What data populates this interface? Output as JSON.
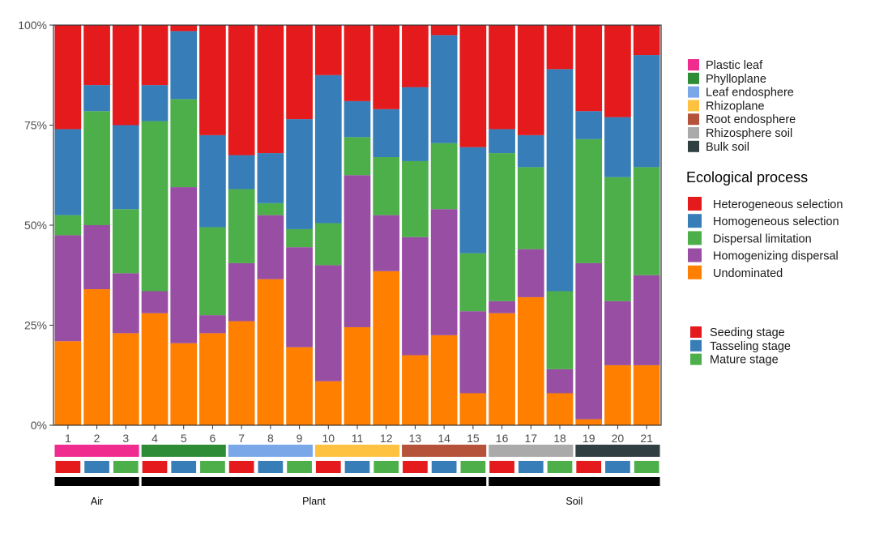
{
  "chart_data": {
    "type": "bar",
    "stacked": "percent",
    "categories": [
      "1",
      "2",
      "3",
      "4",
      "5",
      "6",
      "7",
      "8",
      "9",
      "10",
      "11",
      "12",
      "13",
      "14",
      "15",
      "16",
      "17",
      "18",
      "19",
      "20",
      "21"
    ],
    "y_ticks": [
      "0%",
      "25%",
      "50%",
      "75%",
      "100%"
    ],
    "ylim": [
      0,
      100
    ],
    "series": [
      {
        "name": "Undominated",
        "color": "#FF7F00",
        "values": [
          21,
          34,
          23,
          28,
          20.5,
          23,
          26,
          36.5,
          19.5,
          11,
          24.5,
          38.5,
          17.5,
          22.5,
          8,
          28,
          32,
          8,
          1.5,
          15,
          15
        ]
      },
      {
        "name": "Homogenizing dispersal",
        "color": "#984EA3",
        "values": [
          26.5,
          16,
          15,
          5.5,
          39,
          4.5,
          14.5,
          16,
          25,
          29,
          38,
          14,
          29.5,
          31.5,
          20.5,
          3,
          12,
          6,
          39,
          16,
          22.5
        ]
      },
      {
        "name": "Dispersal limitation",
        "color": "#4DAF4A",
        "values": [
          5,
          28.5,
          16,
          42.5,
          22,
          22,
          18.5,
          3,
          4.5,
          10.5,
          9.5,
          14.5,
          19,
          16.5,
          14.5,
          37,
          20.5,
          19.5,
          31,
          31,
          27
        ]
      },
      {
        "name": "Homogeneous selection",
        "color": "#377EB8",
        "values": [
          21.5,
          6.5,
          21,
          9,
          17,
          23,
          8.5,
          12.5,
          27.5,
          37,
          9,
          12,
          18.5,
          27,
          26.5,
          6,
          8,
          55.5,
          7,
          15,
          28
        ]
      },
      {
        "name": "Heterogeneous selection",
        "color": "#E41A1C",
        "values": [
          26,
          15,
          25,
          15,
          1.5,
          27.5,
          32.5,
          32,
          23.5,
          12.5,
          19,
          21,
          15.5,
          2.5,
          30.5,
          26,
          27.5,
          11,
          21.5,
          23,
          7.5
        ]
      }
    ],
    "compartment_row": [
      {
        "name": "Plastic leaf",
        "color": "#F02C8F",
        "span": [
          1,
          3
        ]
      },
      {
        "name": "Phylloplane",
        "color": "#2E8B36",
        "span": [
          4,
          6
        ]
      },
      {
        "name": "Leaf endosphere",
        "color": "#7AA7E8",
        "span": [
          7,
          9
        ]
      },
      {
        "name": "Rhizoplane",
        "color": "#FFC240",
        "span": [
          10,
          12
        ]
      },
      {
        "name": "Root endosphere",
        "color": "#B5533A",
        "span": [
          13,
          15
        ]
      },
      {
        "name": "Rhizosphere soil",
        "color": "#AAAAAA",
        "span": [
          16,
          18
        ]
      },
      {
        "name": "Bulk soil",
        "color": "#2F3F42",
        "span": [
          19,
          21
        ]
      }
    ],
    "stage_row": [
      {
        "name": "Seeding stage",
        "color": "#E41A1C"
      },
      {
        "name": "Tasseling stage",
        "color": "#377EB8"
      },
      {
        "name": "Mature stage",
        "color": "#4DAF4A"
      }
    ],
    "habitat_row": [
      {
        "name": "Air",
        "span": [
          1,
          3
        ]
      },
      {
        "name": "Plant",
        "span": [
          4,
          15
        ]
      },
      {
        "name": "Soil",
        "span": [
          16,
          21
        ]
      }
    ],
    "legend_process": {
      "title": "Ecological process",
      "items": [
        {
          "name": "Heterogeneous selection",
          "color": "#E41A1C"
        },
        {
          "name": "Homogeneous selection",
          "color": "#377EB8"
        },
        {
          "name": "Dispersal limitation",
          "color": "#4DAF4A"
        },
        {
          "name": "Homogenizing dispersal",
          "color": "#984EA3"
        },
        {
          "name": "Undominated",
          "color": "#FF7F00"
        }
      ]
    }
  }
}
